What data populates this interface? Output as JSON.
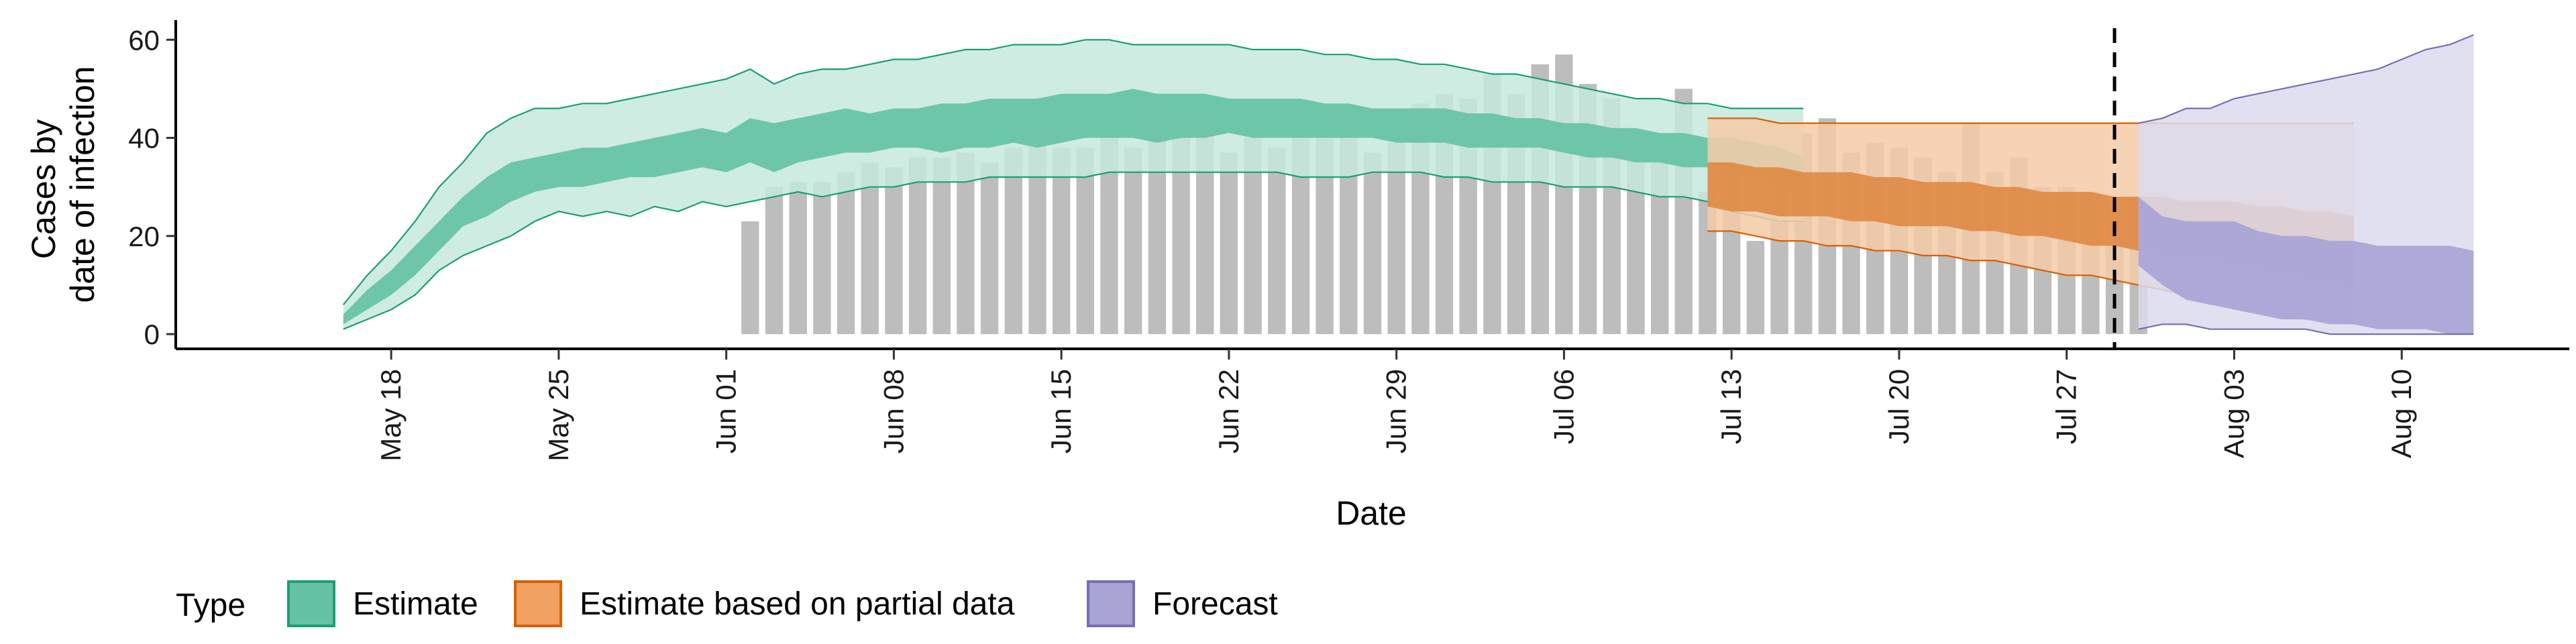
{
  "chart_data": {
    "type": "area",
    "xlabel": "Date",
    "ylabel_lines": [
      "Cases by",
      "date of infection"
    ],
    "ylim": [
      -3,
      64
    ],
    "yticks": [
      0,
      20,
      40,
      60
    ],
    "xticks": [
      {
        "date": "2020-05-18",
        "label": "May 18"
      },
      {
        "date": "2020-05-25",
        "label": "May 25"
      },
      {
        "date": "2020-06-01",
        "label": "Jun 01"
      },
      {
        "date": "2020-06-08",
        "label": "Jun 08"
      },
      {
        "date": "2020-06-15",
        "label": "Jun 15"
      },
      {
        "date": "2020-06-22",
        "label": "Jun 22"
      },
      {
        "date": "2020-06-29",
        "label": "Jun 29"
      },
      {
        "date": "2020-07-06",
        "label": "Jul 06"
      },
      {
        "date": "2020-07-13",
        "label": "Jul 13"
      },
      {
        "date": "2020-07-20",
        "label": "Jul 20"
      },
      {
        "date": "2020-07-27",
        "label": "Jul 27"
      },
      {
        "date": "2020-08-03",
        "label": "Aug 03"
      },
      {
        "date": "2020-08-10",
        "label": "Aug 10"
      }
    ],
    "xlim": [
      "2020-05-09",
      "2020-08-17"
    ],
    "vline_date": "2020-07-29",
    "legend": {
      "title": "Type",
      "position": "bottom",
      "items": [
        {
          "label": "Estimate",
          "fill": "#66c2a5",
          "border": "#1b9e77"
        },
        {
          "label": "Estimate based on partial data",
          "fill": "#f0a060",
          "border": "#d95f02"
        },
        {
          "label": "Forecast",
          "fill": "#a8a4d6",
          "border": "#7570b3"
        }
      ]
    },
    "colors": {
      "bars": "#bdbdbd",
      "estimate_outer": "#c6e9dd",
      "estimate_inner": "#66c2a5",
      "estimate_line": "#1b9e77",
      "partial_outer": "#f6cba8",
      "partial_inner": "#e08a45",
      "partial_line": "#d95f02",
      "forecast_outer": "#dcdaee",
      "forecast_inner": "#a8a4d6",
      "forecast_line": "#7570b3"
    },
    "bars": {
      "start_date": "2020-06-02",
      "values": [
        23,
        30,
        31,
        31,
        33,
        35,
        34,
        36,
        36,
        37,
        35,
        38,
        39,
        38,
        38,
        40,
        38,
        47,
        44,
        45,
        37,
        40,
        38,
        40,
        40,
        45,
        37,
        39,
        47,
        49,
        48,
        53,
        49,
        55,
        57,
        51,
        48,
        41,
        40,
        50,
        29,
        41,
        19,
        39,
        41,
        44,
        37,
        39,
        38,
        36,
        33,
        43,
        33,
        36,
        30,
        30,
        29,
        26,
        28
      ]
    },
    "series": [
      {
        "name": "Estimate",
        "start_date": "2020-05-16",
        "lower90": [
          1,
          3,
          5,
          8,
          13,
          16,
          18,
          20,
          23,
          25,
          24,
          25,
          24,
          26,
          25,
          27,
          26,
          27,
          28,
          29,
          28,
          29,
          30,
          30,
          31,
          31,
          31,
          32,
          32,
          32,
          32,
          32,
          33,
          33,
          33,
          33,
          33,
          33,
          33,
          33,
          32,
          32,
          32,
          33,
          33,
          33,
          32,
          32,
          31,
          31,
          31,
          30,
          30,
          30,
          29,
          28,
          28,
          27,
          25,
          24,
          23,
          23
        ],
        "upper90": [
          6,
          12,
          17,
          23,
          30,
          35,
          41,
          44,
          46,
          46,
          47,
          47,
          48,
          49,
          50,
          51,
          52,
          54,
          51,
          53,
          54,
          54,
          55,
          56,
          56,
          57,
          58,
          58,
          59,
          59,
          59,
          60,
          60,
          59,
          59,
          59,
          59,
          59,
          58,
          58,
          58,
          57,
          57,
          56,
          56,
          55,
          55,
          54,
          53,
          53,
          52,
          51,
          50,
          49,
          48,
          48,
          47,
          47,
          46,
          46,
          46,
          46
        ],
        "lower50": [
          2,
          5,
          8,
          12,
          17,
          22,
          24,
          27,
          29,
          30,
          30,
          31,
          32,
          32,
          33,
          34,
          33,
          35,
          33,
          35,
          36,
          37,
          37,
          38,
          38,
          37,
          38,
          38,
          39,
          38,
          39,
          40,
          40,
          40,
          39,
          40,
          40,
          41,
          40,
          40,
          40,
          40,
          40,
          40,
          39,
          39,
          39,
          38,
          38,
          38,
          38,
          37,
          36,
          36,
          35,
          35,
          34,
          34,
          33,
          32,
          30,
          28
        ],
        "upper50": [
          4,
          9,
          13,
          18,
          23,
          28,
          32,
          35,
          36,
          37,
          38,
          38,
          39,
          40,
          41,
          42,
          41,
          44,
          43,
          44,
          45,
          46,
          45,
          46,
          46,
          47,
          47,
          48,
          48,
          48,
          49,
          49,
          49,
          50,
          49,
          49,
          49,
          48,
          48,
          48,
          48,
          47,
          47,
          46,
          46,
          46,
          46,
          45,
          45,
          44,
          44,
          43,
          43,
          42,
          42,
          41,
          41,
          40,
          40,
          39,
          38,
          36
        ]
      },
      {
        "name": "Estimate based on partial data",
        "start_date": "2020-07-12",
        "lower90": [
          21,
          21,
          20,
          19,
          19,
          18,
          18,
          17,
          17,
          16,
          16,
          15,
          15,
          14,
          13,
          12,
          12,
          11,
          10,
          9,
          8,
          7,
          6,
          5,
          4,
          3,
          3,
          2
        ],
        "upper90": [
          44,
          44,
          44,
          43,
          43,
          43,
          43,
          43,
          43,
          43,
          43,
          43,
          43,
          43,
          43,
          43,
          43,
          43,
          43,
          43,
          43,
          43,
          43,
          43,
          43,
          43,
          43,
          43
        ],
        "lower50": [
          26,
          25,
          25,
          24,
          24,
          24,
          23,
          23,
          22,
          22,
          22,
          21,
          21,
          20,
          20,
          19,
          18,
          18,
          17,
          16,
          15,
          15,
          14,
          13,
          12,
          11,
          10,
          9
        ],
        "upper50": [
          35,
          35,
          34,
          34,
          33,
          33,
          33,
          32,
          32,
          31,
          31,
          31,
          30,
          30,
          29,
          29,
          29,
          28,
          28,
          28,
          27,
          27,
          27,
          26,
          26,
          25,
          25,
          24
        ]
      },
      {
        "name": "Forecast",
        "start_date": "2020-07-30",
        "lower90": [
          1,
          2,
          2,
          1,
          1,
          1,
          1,
          1,
          0,
          0,
          0,
          0,
          0,
          0,
          0
        ],
        "upper90": [
          43,
          44,
          46,
          46,
          48,
          49,
          50,
          51,
          52,
          53,
          54,
          56,
          58,
          59,
          61
        ],
        "lower50": [
          14,
          10,
          7,
          6,
          5,
          4,
          3,
          3,
          2,
          2,
          1,
          1,
          1,
          0,
          0
        ],
        "upper50": [
          28,
          24,
          23,
          23,
          23,
          21,
          20,
          20,
          19,
          19,
          18,
          18,
          18,
          18,
          17
        ]
      }
    ]
  }
}
